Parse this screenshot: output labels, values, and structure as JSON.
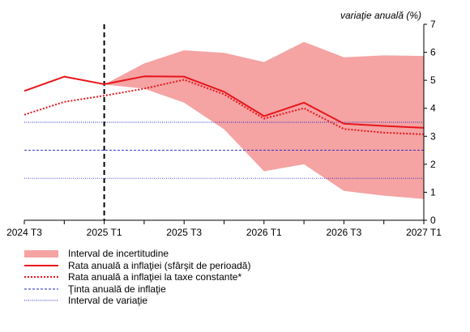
{
  "chart_data": {
    "type": "line",
    "ylabel": "variaţie anuală (%)",
    "ylim": [
      0,
      7
    ],
    "yticks": [
      0,
      1,
      2,
      3,
      4,
      5,
      6,
      7
    ],
    "x": [
      "2024 T3",
      "2024 T4",
      "2025 T1",
      "2025 T2",
      "2025 T3",
      "2025 T4",
      "2026 T1",
      "2026 T2",
      "2026 T3",
      "2026 T4",
      "2027 T1"
    ],
    "xtick_labels": [
      "2024 T3",
      "2025 T1",
      "2025 T3",
      "2026 T1",
      "2026 T3",
      "2027 T1"
    ],
    "forecast_start": "2025 T1",
    "uncertainty_band": {
      "name": "Interval de incertitudine",
      "color": "#f5a3a3",
      "start": "2025 T1",
      "lower": [
        4.85,
        4.7,
        4.2,
        3.25,
        1.75,
        2.0,
        1.05,
        0.88,
        0.76
      ],
      "upper": [
        4.85,
        5.6,
        6.07,
        5.98,
        5.65,
        6.37,
        5.82,
        5.89,
        5.87
      ]
    },
    "series": [
      {
        "name": "Rata anuală a inflaţiei (sfârşit de perioadă)",
        "color": "#e8151b",
        "style": "solid",
        "values": [
          4.62,
          5.13,
          4.86,
          5.14,
          5.13,
          4.59,
          3.72,
          4.2,
          3.45,
          3.37,
          3.3
        ]
      },
      {
        "name": "Rata anuală a inflaţiei la taxe constante*",
        "color": "#e8151b",
        "style": "dotted",
        "values": [
          3.77,
          4.23,
          4.45,
          4.7,
          5.02,
          4.5,
          3.63,
          4.0,
          3.26,
          3.13,
          3.07
        ]
      }
    ],
    "reference_lines": [
      {
        "name": "Ţinta anuală de inflaţie",
        "value": 2.5,
        "color": "#2020c8",
        "style": "dashed"
      },
      {
        "name": "Interval de variaţie",
        "value": 3.5,
        "color": "#2020c8",
        "style": "dotted"
      },
      {
        "name": "Interval de variaţie",
        "value": 1.5,
        "color": "#2020c8",
        "style": "dotted"
      }
    ],
    "legend": [
      "Interval de incertitudine",
      "Rata anuală a inflaţiei (sfârşit de perioadă)",
      "Rata anuală a inflaţiei la taxe constante*",
      "Ţinta anuală de inflaţie",
      "Interval de variaţie"
    ],
    "legend_position": "bottom-left"
  }
}
